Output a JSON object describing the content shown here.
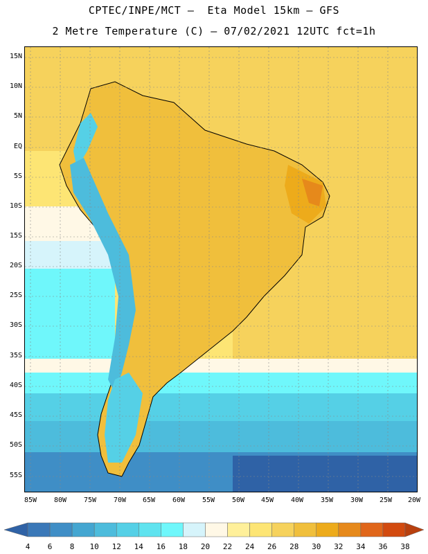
{
  "header": {
    "line1": "CPTEC/INPE/MCT –  Eta Model 15km – GFS",
    "line2": "2 Metre Temperature (C) – 07/02/2021 12UTC fct=1h"
  },
  "map": {
    "lat_labels": [
      "15N",
      "10N",
      "5N",
      "EQ",
      "5S",
      "10S",
      "15S",
      "20S",
      "25S",
      "30S",
      "35S",
      "40S",
      "45S",
      "50S",
      "55S"
    ],
    "lon_labels": [
      "85W",
      "80W",
      "75W",
      "70W",
      "65W",
      "60W",
      "55W",
      "50W",
      "45W",
      "40W",
      "35W",
      "30W",
      "25W",
      "20W"
    ]
  },
  "colorbar": {
    "levels": [
      "4",
      "6",
      "8",
      "10",
      "12",
      "14",
      "16",
      "18",
      "20",
      "22",
      "24",
      "26",
      "28",
      "30",
      "32",
      "34",
      "36",
      "38"
    ],
    "colors": [
      "#2f62a6",
      "#3a78b8",
      "#3f8ec6",
      "#44a6d1",
      "#4dbcdc",
      "#55d0e6",
      "#5fe3ef",
      "#6ff7fb",
      "#d6f4fb",
      "#fff8e6",
      "#fff09a",
      "#fde574",
      "#f6d25c",
      "#f0bf3c",
      "#edab1b",
      "#e6891b",
      "#e0661a",
      "#d24a0f",
      "#b8400e"
    ]
  }
}
